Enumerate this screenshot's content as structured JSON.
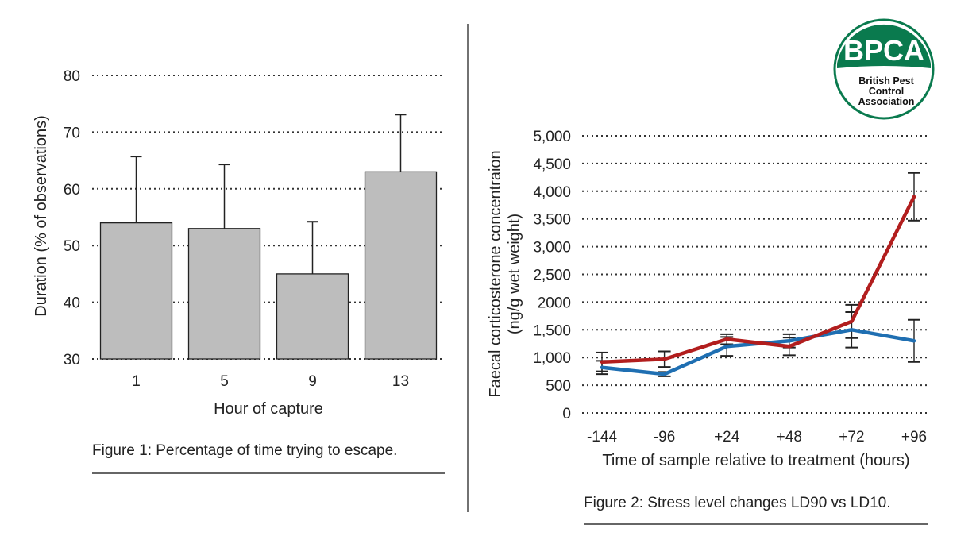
{
  "logo": {
    "mark": "BPCA",
    "tagline_lines": [
      "British Pest",
      "Control",
      "Association"
    ],
    "color": "#0a7a4e"
  },
  "chart_data": [
    {
      "type": "bar",
      "categories": [
        "1",
        "5",
        "9",
        "13"
      ],
      "values": [
        54,
        53,
        45,
        63
      ],
      "error_upper": [
        65.7,
        64.3,
        54.2,
        73.1
      ],
      "title": "",
      "xlabel": "Hour of capture",
      "ylabel": "Duration (% of observations)",
      "ylim": [
        30,
        80
      ],
      "yticks": [
        30,
        40,
        50,
        60,
        70,
        80
      ],
      "grid": true,
      "bar_color": "#bdbdbd",
      "caption": "Figure 1: Percentage of time trying to escape."
    },
    {
      "type": "line",
      "categories": [
        "-144",
        "-96",
        "+24",
        "+48",
        "+72",
        "+96"
      ],
      "series": [
        {
          "name": "",
          "color": "#b21e1e",
          "values": [
            920,
            970,
            1330,
            1200,
            1650,
            3900
          ],
          "error": [
            170,
            140,
            90,
            160,
            300,
            430
          ]
        },
        {
          "name": "",
          "color": "#1f6fb2",
          "values": [
            820,
            700,
            1200,
            1300,
            1500,
            1300
          ],
          "error": [
            120,
            40,
            170,
            120,
            320,
            380
          ]
        }
      ],
      "title": "",
      "xlabel": "Time of sample relative to treatment (hours)",
      "ylabel_lines": [
        "Faecal corticosterone concentraion",
        "(ng/g wet weight)"
      ],
      "ylim": [
        0,
        5000
      ],
      "yticks": [
        0,
        500,
        1000,
        1500,
        2000,
        2500,
        3000,
        3500,
        4000,
        4500,
        5000
      ],
      "ytick_labels": [
        "0",
        "500",
        "1,000",
        "1,500",
        "2000",
        "2,500",
        "3,000",
        "3,500",
        "4,000",
        "4,500",
        "5,000"
      ],
      "grid": true,
      "caption": "Figure 2: Stress level changes LD90 vs LD10."
    }
  ]
}
